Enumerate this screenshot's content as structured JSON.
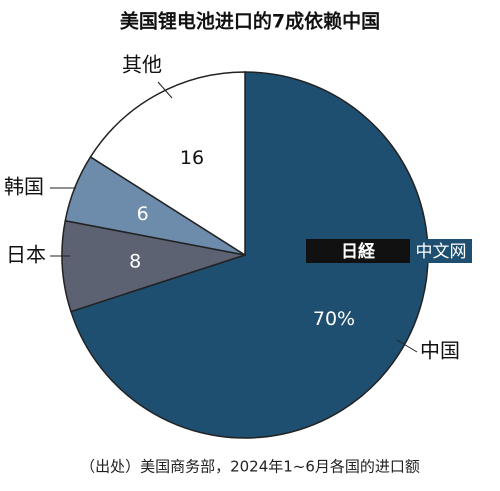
{
  "chart_data": {
    "type": "pie",
    "title": "美国锂电池进口的7成依赖中国",
    "categories": [
      "中国",
      "日本",
      "韩国",
      "其他"
    ],
    "values": [
      70,
      8,
      6,
      16
    ],
    "value_labels": [
      "70%",
      "8",
      "6",
      "16"
    ],
    "colors": [
      "#1f4f70",
      "#5c6272",
      "#6d8bab",
      "#ffffff"
    ],
    "source": "（出处）美国商务部，2024年1~6月各国的进口额",
    "watermark": {
      "logo": "日経",
      "text": "中文网"
    }
  }
}
